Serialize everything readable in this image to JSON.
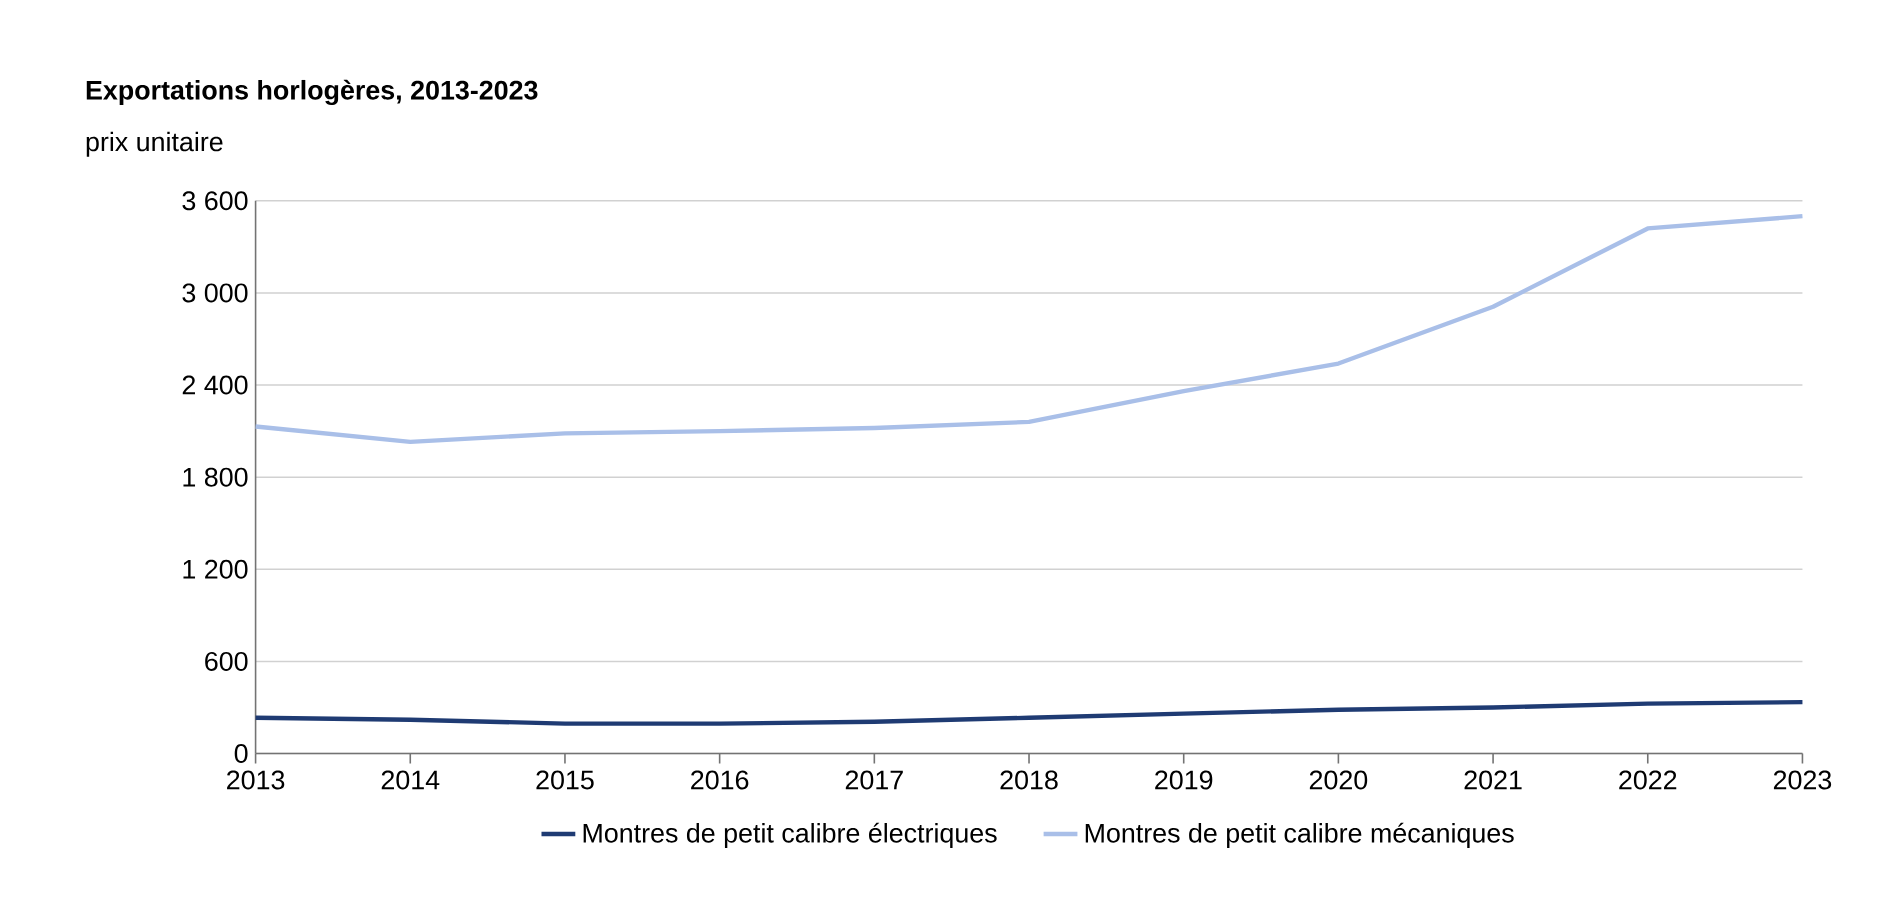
{
  "chart_data": {
    "type": "line",
    "title": "Exportations horlogères, 2013-2023",
    "ylabel": "prix unitaire",
    "x": [
      2013,
      2014,
      2015,
      2016,
      2017,
      2018,
      2019,
      2020,
      2021,
      2022,
      2023
    ],
    "series": [
      {
        "name": "Montres de petit calibre électriques",
        "color": "#1f3b73",
        "values": [
          233,
          220,
          195,
          195,
          207,
          233,
          260,
          285,
          300,
          325,
          335
        ]
      },
      {
        "name": "Montres de petit calibre mécaniques",
        "color": "#a9bfe8",
        "values": [
          2130,
          2030,
          2085,
          2100,
          2120,
          2160,
          2360,
          2540,
          2910,
          3420,
          3500
        ]
      }
    ],
    "xlim": [
      2013,
      2023
    ],
    "xticks": [
      2013,
      2014,
      2015,
      2016,
      2017,
      2018,
      2019,
      2020,
      2021,
      2022,
      2023
    ],
    "ylim": [
      0,
      3600
    ],
    "yticks": [
      0,
      600,
      {
        "value": 1200,
        "label": "1 200"
      },
      {
        "value": 1800,
        "label": "1 800"
      },
      {
        "value": 2400,
        "label": "2 400"
      },
      {
        "value": 3000,
        "label": "3 000"
      },
      {
        "value": 3600,
        "label": "3 600"
      }
    ],
    "grid": "y",
    "legend": "bottom",
    "marker": "none",
    "line_style": "solid"
  }
}
